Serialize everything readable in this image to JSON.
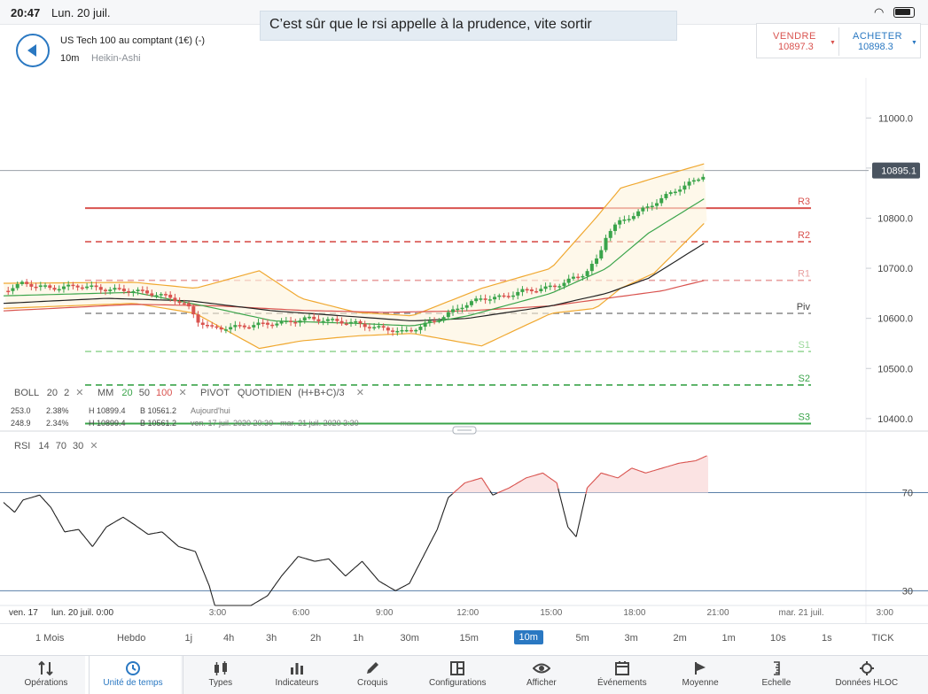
{
  "status": {
    "time": "20:47",
    "date": "Lun. 20 juil."
  },
  "comment": "C’est sûr que le rsi appelle à la prudence, vite sortir",
  "instrument": {
    "name": "US Tech 100 au comptant (1€) (-)",
    "timeframe": "10m",
    "chart_type": "Heikin-Ashi"
  },
  "trade": {
    "sell_label": "VENDRE",
    "sell_price": "10897.3",
    "buy_label": "ACHETER",
    "buy_price": "10898.3"
  },
  "current_price_label": "10895.1",
  "legend": {
    "boll": {
      "name": "BOLL",
      "p1": "20",
      "p2": "2"
    },
    "mm": {
      "name": "MM",
      "p1": "20",
      "p2": "50",
      "p3": "100"
    },
    "pivot": {
      "name": "PIVOT",
      "p1": "QUOTIDIEN",
      "p2": "(H+B+C)/3"
    },
    "row1": {
      "a": "253.0",
      "b": "2.38%",
      "h": "H 10899.4",
      "l": "B 10561.2",
      "period": "Aujourd'hui"
    },
    "row2": {
      "a": "248.9",
      "b": "2.34%",
      "h": "H 10899.4",
      "l": "B 10561.2",
      "period": "ven. 17 juil. 2020 20:30 - mar. 21 juil. 2020 3:30"
    },
    "rsi": {
      "name": "RSI",
      "p1": "14",
      "p2": "70",
      "p3": "30"
    }
  },
  "timeframes": [
    "1 Mois",
    "Hebdo",
    "1j",
    "4h",
    "3h",
    "2h",
    "1h",
    "30m",
    "15m",
    "10m",
    "5m",
    "3m",
    "2m",
    "1m",
    "10s",
    "1s",
    "TICK"
  ],
  "active_timeframe": "10m",
  "toolbar": [
    {
      "label": "Opérations",
      "icon": "sort-arrows-icon"
    },
    {
      "label": "Unité de temps",
      "icon": "clock-icon"
    },
    {
      "label": "Types",
      "icon": "candles-icon"
    },
    {
      "label": "Indicateurs",
      "icon": "bar-chart-icon"
    },
    {
      "label": "Croquis",
      "icon": "pencil-icon"
    },
    {
      "label": "Configurations",
      "icon": "layout-icon"
    },
    {
      "label": "Afficher",
      "icon": "eye-icon"
    },
    {
      "label": "Événements",
      "icon": "calendar-icon"
    },
    {
      "label": "Moyenne",
      "icon": "flag-icon"
    },
    {
      "label": "Echelle",
      "icon": "scale-icon"
    },
    {
      "label": "Données HLOC",
      "icon": "crosshair-icon"
    }
  ],
  "active_tool": "Unité de temps",
  "colors": {
    "accent": "#2a78c2",
    "bull": "#3aa44a",
    "bear": "#d9534f",
    "boll": "#f0a830",
    "mm20": "#3aa44a",
    "mm50": "#222222",
    "mm100": "#d9534f"
  },
  "chart_data": [
    {
      "type": "candlestick",
      "chart_style": "Heikin-Ashi",
      "y_ticks": [
        11000,
        10900,
        10800,
        10700,
        10600,
        10500,
        10400
      ],
      "y_tick_labels": [
        "11000.0",
        "10800.0",
        "10700.0",
        "10600.0",
        "10500.0",
        "10400.0"
      ],
      "ylim": [
        10375,
        11080
      ],
      "x_tick_labels": [
        "ven. 17",
        "lun. 20 juil. 0:00",
        "3:00",
        "6:00",
        "9:00",
        "12:00",
        "15:00",
        "18:00",
        "21:00",
        "mar. 21 juil.",
        "3:00"
      ],
      "x_tick_hours": [
        -4.5,
        0,
        3,
        6,
        9,
        12,
        15,
        18,
        21,
        24,
        27
      ],
      "xlim_hours": [
        -4.7,
        27.6
      ],
      "current_price": 10895.1,
      "pivots": [
        {
          "name": "R3",
          "value": 10820,
          "color": "#d9534f",
          "style": "solid"
        },
        {
          "name": "R2",
          "value": 10753,
          "color": "#d9534f",
          "style": "dashed"
        },
        {
          "name": "R1",
          "value": 10676,
          "color": "#e8a0a0",
          "style": "dashed"
        },
        {
          "name": "Piv",
          "value": 10610,
          "color": "#888888",
          "style": "dashed"
        },
        {
          "name": "S1",
          "value": 10534,
          "color": "#9ad89a",
          "style": "dashed"
        },
        {
          "name": "S2",
          "value": 10467,
          "color": "#3aa44a",
          "style": "dashed"
        },
        {
          "name": "S3",
          "value": 10390,
          "color": "#3aa44a",
          "style": "solid"
        }
      ],
      "close_keypoints": [
        [
          -4.7,
          10655
        ],
        [
          -4.0,
          10670
        ],
        [
          -3.0,
          10660
        ],
        [
          -2.0,
          10665
        ],
        [
          -1.0,
          10658
        ],
        [
          0.0,
          10655
        ],
        [
          0.8,
          10648
        ],
        [
          1.4,
          10640
        ],
        [
          1.9,
          10625
        ],
        [
          2.3,
          10595
        ],
        [
          2.8,
          10580
        ],
        [
          3.5,
          10582
        ],
        [
          4.5,
          10588
        ],
        [
          5.5,
          10592
        ],
        [
          6.2,
          10600
        ],
        [
          7.0,
          10596
        ],
        [
          8.0,
          10590
        ],
        [
          8.6,
          10582
        ],
        [
          9.2,
          10578
        ],
        [
          9.7,
          10572
        ],
        [
          10.2,
          10582
        ],
        [
          11.0,
          10600
        ],
        [
          11.8,
          10625
        ],
        [
          12.5,
          10640
        ],
        [
          13.2,
          10642
        ],
        [
          14.0,
          10655
        ],
        [
          14.8,
          10660
        ],
        [
          15.4,
          10670
        ],
        [
          15.8,
          10680
        ],
        [
          16.2,
          10690
        ],
        [
          16.7,
          10720
        ],
        [
          17.0,
          10770
        ],
        [
          17.4,
          10790
        ],
        [
          17.9,
          10805
        ],
        [
          18.4,
          10820
        ],
        [
          19.0,
          10840
        ],
        [
          19.6,
          10860
        ],
        [
          20.2,
          10875
        ],
        [
          20.6,
          10892
        ]
      ],
      "overlays": {
        "mm20_keypoints": [
          [
            -4.7,
            10645
          ],
          [
            0,
            10652
          ],
          [
            2.5,
            10625
          ],
          [
            5,
            10595
          ],
          [
            8,
            10590
          ],
          [
            10,
            10585
          ],
          [
            12,
            10605
          ],
          [
            15,
            10650
          ],
          [
            17,
            10700
          ],
          [
            18.5,
            10770
          ],
          [
            20.6,
            10842
          ]
        ],
        "mm50_keypoints": [
          [
            -4.7,
            10630
          ],
          [
            -1,
            10640
          ],
          [
            2,
            10635
          ],
          [
            5,
            10615
          ],
          [
            8,
            10603
          ],
          [
            10,
            10595
          ],
          [
            12,
            10600
          ],
          [
            15,
            10625
          ],
          [
            17,
            10650
          ],
          [
            18.5,
            10680
          ],
          [
            20.6,
            10753
          ]
        ],
        "mm100_keypoints": [
          [
            -4.7,
            10615
          ],
          [
            0,
            10628
          ],
          [
            3,
            10625
          ],
          [
            6,
            10616
          ],
          [
            9,
            10612
          ],
          [
            12,
            10615
          ],
          [
            15,
            10625
          ],
          [
            17,
            10640
          ],
          [
            19,
            10655
          ],
          [
            20.6,
            10677
          ]
        ],
        "boll_upper_keypoints": [
          [
            -4.7,
            10670
          ],
          [
            0,
            10672
          ],
          [
            2.2,
            10660
          ],
          [
            4.5,
            10695
          ],
          [
            6,
            10640
          ],
          [
            8,
            10612
          ],
          [
            10,
            10605
          ],
          [
            12.5,
            10660
          ],
          [
            15,
            10700
          ],
          [
            16.6,
            10800
          ],
          [
            17.5,
            10860
          ],
          [
            18.7,
            10880
          ],
          [
            20.6,
            10910
          ]
        ],
        "boll_lower_keypoints": [
          [
            -4.7,
            10620
          ],
          [
            0,
            10630
          ],
          [
            2.2,
            10610
          ],
          [
            4.5,
            10540
          ],
          [
            6,
            10555
          ],
          [
            8,
            10565
          ],
          [
            10,
            10570
          ],
          [
            12.5,
            10545
          ],
          [
            15,
            10610
          ],
          [
            16.6,
            10620
          ],
          [
            17.5,
            10660
          ],
          [
            18.7,
            10690
          ],
          [
            20.6,
            10795
          ]
        ]
      }
    },
    {
      "type": "line",
      "name": "RSI 14",
      "ylim": [
        24,
        94
      ],
      "levels": [
        70,
        30
      ],
      "y_tick_labels": [
        "70",
        "30"
      ],
      "keypoints": [
        [
          -4.7,
          66
        ],
        [
          -4.3,
          62
        ],
        [
          -4.0,
          67
        ],
        [
          -3.4,
          69
        ],
        [
          -3.0,
          64
        ],
        [
          -2.5,
          54
        ],
        [
          -2.0,
          55
        ],
        [
          -1.5,
          48
        ],
        [
          -1.0,
          56
        ],
        [
          -0.4,
          60
        ],
        [
          0.0,
          57
        ],
        [
          0.5,
          53
        ],
        [
          1.0,
          54
        ],
        [
          1.6,
          48
        ],
        [
          2.2,
          46
        ],
        [
          2.7,
          32
        ],
        [
          3.0,
          20
        ],
        [
          3.5,
          22
        ],
        [
          4.2,
          24
        ],
        [
          4.8,
          28
        ],
        [
          5.3,
          36
        ],
        [
          5.9,
          44
        ],
        [
          6.5,
          42
        ],
        [
          7.0,
          43
        ],
        [
          7.6,
          36
        ],
        [
          8.2,
          42
        ],
        [
          8.8,
          34
        ],
        [
          9.4,
          30
        ],
        [
          9.9,
          33
        ],
        [
          10.4,
          44
        ],
        [
          10.9,
          55
        ],
        [
          11.3,
          68
        ],
        [
          11.9,
          74
        ],
        [
          12.5,
          76
        ],
        [
          12.9,
          69
        ],
        [
          13.5,
          72
        ],
        [
          14.1,
          76
        ],
        [
          14.7,
          78
        ],
        [
          15.2,
          74
        ],
        [
          15.6,
          56
        ],
        [
          15.9,
          52
        ],
        [
          16.3,
          72
        ],
        [
          16.8,
          78
        ],
        [
          17.4,
          76
        ],
        [
          17.9,
          80
        ],
        [
          18.4,
          78
        ],
        [
          19.0,
          80
        ],
        [
          19.6,
          82
        ],
        [
          20.2,
          83
        ],
        [
          20.6,
          85
        ]
      ]
    }
  ]
}
